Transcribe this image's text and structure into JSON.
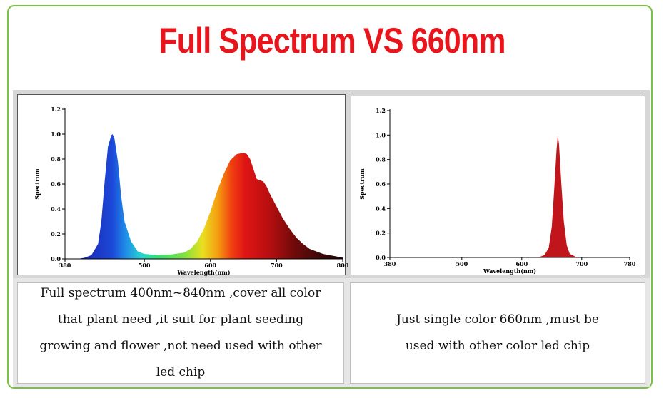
{
  "title": "Full Spectrum VS 660nm",
  "captions": {
    "left": "Full spectrum 400nm~840nm ,cover all color that plant need ,it suit for plant seeding growing and flower ,not need used with other led chip",
    "right": "Just single color 660nm ,must be used with other color led chip"
  },
  "colors": {
    "title": "#e8161c",
    "frame": "#7ac143"
  },
  "chart_data": [
    {
      "type": "area",
      "title": "",
      "xlabel": "Wavelength(nm)",
      "ylabel": "Spectrum",
      "xlim": [
        380,
        800
      ],
      "ylim": [
        0,
        1.2
      ],
      "x_ticks": [
        380,
        500,
        600,
        700,
        800
      ],
      "x_tick_labels": [
        "380",
        "500",
        "600",
        "700",
        "800"
      ],
      "y_ticks": [
        0,
        0.2,
        0.4,
        0.6,
        0.8,
        1.0,
        1.2
      ],
      "y_tick_labels": [
        "0.0",
        "0.2",
        "0.4",
        "0.6",
        "0.8",
        "1.0",
        "1.2"
      ],
      "fill": "spectrum-gradient",
      "x": [
        400,
        410,
        420,
        430,
        435,
        440,
        445,
        450,
        452,
        455,
        460,
        465,
        470,
        480,
        490,
        500,
        520,
        540,
        560,
        570,
        580,
        590,
        600,
        610,
        620,
        630,
        640,
        650,
        655,
        660,
        665,
        670,
        675,
        680,
        685,
        690,
        700,
        710,
        720,
        730,
        740,
        750,
        760,
        770,
        780,
        790,
        800
      ],
      "y": [
        0,
        0.01,
        0.03,
        0.12,
        0.3,
        0.62,
        0.9,
        0.99,
        1.0,
        0.96,
        0.78,
        0.5,
        0.3,
        0.14,
        0.06,
        0.04,
        0.03,
        0.035,
        0.05,
        0.08,
        0.14,
        0.24,
        0.38,
        0.54,
        0.68,
        0.79,
        0.84,
        0.85,
        0.84,
        0.8,
        0.72,
        0.64,
        0.63,
        0.62,
        0.58,
        0.52,
        0.42,
        0.32,
        0.24,
        0.17,
        0.12,
        0.08,
        0.06,
        0.04,
        0.03,
        0.02,
        0.01
      ]
    },
    {
      "type": "area",
      "title": "",
      "xlabel": "Wavelength(nm)",
      "ylabel": "Spectrum",
      "xlim": [
        380,
        780
      ],
      "ylim": [
        0,
        1.2
      ],
      "x_ticks": [
        380,
        500,
        600,
        700,
        780
      ],
      "x_tick_labels": [
        "380",
        "500",
        "600",
        "700",
        "780"
      ],
      "y_ticks": [
        0,
        0.2,
        0.4,
        0.6,
        0.8,
        1.0,
        1.2
      ],
      "y_tick_labels": [
        "0.0",
        "0.2",
        "0.4",
        "0.6",
        "0.8",
        "1.0",
        "1.2"
      ],
      "fill": "#c0151b",
      "x": [
        620,
        630,
        638,
        645,
        650,
        654,
        658,
        660,
        662,
        666,
        670,
        675,
        680,
        690,
        700
      ],
      "y": [
        0,
        0.005,
        0.02,
        0.08,
        0.25,
        0.55,
        0.88,
        1.0,
        0.93,
        0.6,
        0.3,
        0.1,
        0.03,
        0.005,
        0
      ]
    }
  ]
}
